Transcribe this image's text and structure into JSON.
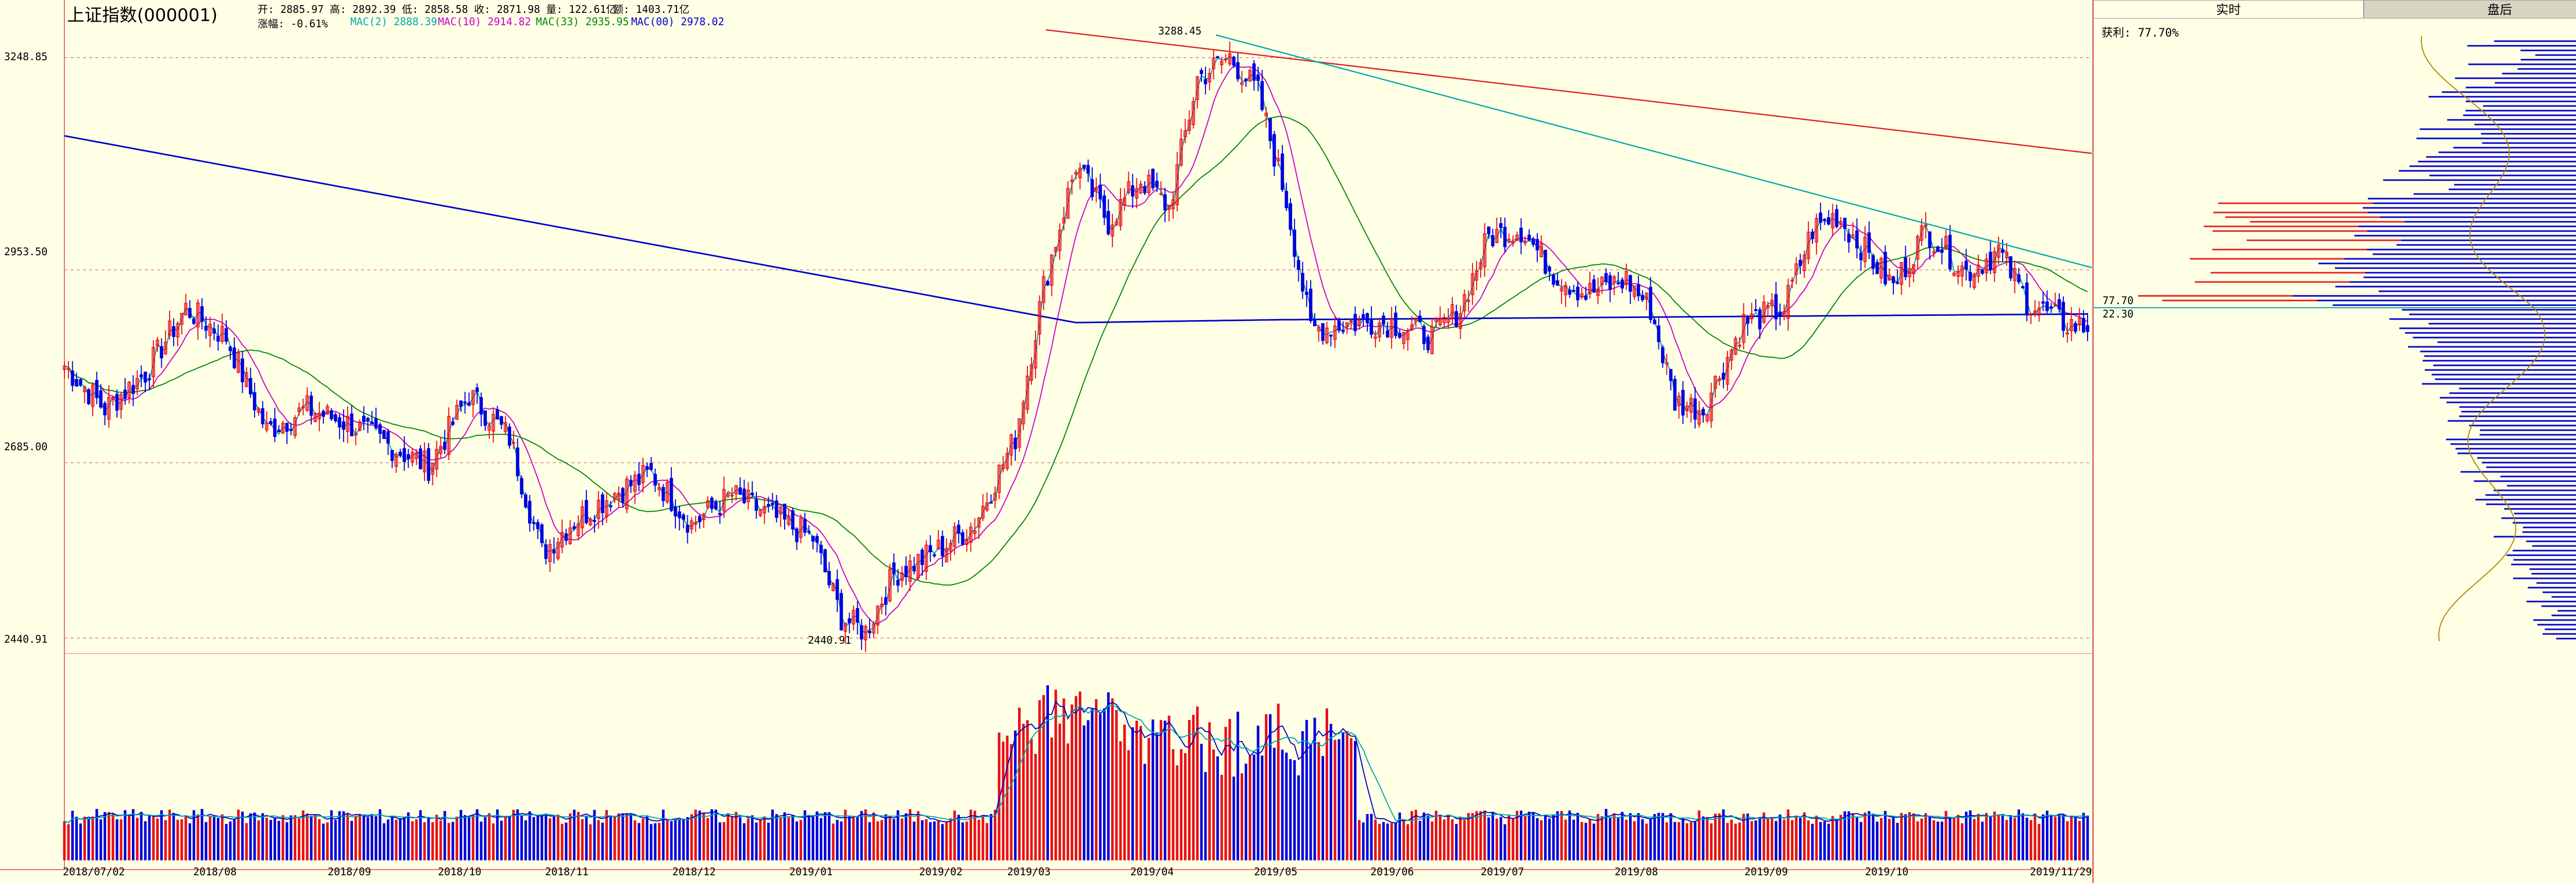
{
  "header": {
    "title": "上证指数(000001)",
    "open": "开: 2885.97",
    "high": "高: 2892.39",
    "low": "低: 2858.58",
    "close": "收: 2871.98",
    "volume": "量: 122.61亿",
    "amount": "额: 1403.71亿",
    "change": "涨幅: -0.61%",
    "ma2": "MAC(2) 2888.39",
    "ma10": "MAC(10) 2914.82",
    "ma33": "MAC(33) 2935.95",
    "ma250": "MAC(00) 2978.02"
  },
  "colors": {
    "background": "#ffffe6",
    "up": "#e8101a",
    "down": "#0000e0",
    "ma2": "#00aaaa",
    "ma10": "#cc00cc",
    "ma33": "#008800",
    "ma250": "#0000cc",
    "trend_red": "#e02020",
    "trend_cyan": "#00aaaa"
  },
  "tabs": {
    "realtime": "实时",
    "closing": "盘后"
  },
  "right_panel": {
    "profit_ratio": "获利: 77.70%",
    "level_upper": "77.70",
    "level_lower": "22.30"
  },
  "chart_data": {
    "type": "candlestick",
    "y_ticks": [
      "3248.85",
      "2953.50",
      "2685.00",
      "2440.91"
    ],
    "ylim": [
      2390,
      3330
    ],
    "x_ticks": [
      "2018/07/02",
      "2018/08",
      "2018/09",
      "2018/10",
      "2018/11",
      "2018/12",
      "2019/01",
      "2019/02",
      "2019/03",
      "2019/04",
      "2019/05",
      "2019/06",
      "2019/07",
      "2019/08",
      "2019/09",
      "2019/10",
      "2019/11/29"
    ],
    "annotations": {
      "high": "3288.45",
      "low": "2440.91"
    },
    "anchors": [
      {
        "i": 0,
        "v": 2820
      },
      {
        "i": 10,
        "v": 2760
      },
      {
        "i": 20,
        "v": 2810
      },
      {
        "i": 30,
        "v": 2900
      },
      {
        "i": 40,
        "v": 2860
      },
      {
        "i": 50,
        "v": 2730
      },
      {
        "i": 60,
        "v": 2760
      },
      {
        "i": 70,
        "v": 2740
      },
      {
        "i": 80,
        "v": 2710
      },
      {
        "i": 90,
        "v": 2680
      },
      {
        "i": 100,
        "v": 2780
      },
      {
        "i": 110,
        "v": 2720
      },
      {
        "i": 118,
        "v": 2560
      },
      {
        "i": 125,
        "v": 2600
      },
      {
        "i": 135,
        "v": 2640
      },
      {
        "i": 145,
        "v": 2670
      },
      {
        "i": 155,
        "v": 2600
      },
      {
        "i": 165,
        "v": 2640
      },
      {
        "i": 175,
        "v": 2610
      },
      {
        "i": 185,
        "v": 2580
      },
      {
        "i": 192,
        "v": 2470
      },
      {
        "i": 198,
        "v": 2450
      },
      {
        "i": 205,
        "v": 2530
      },
      {
        "i": 215,
        "v": 2560
      },
      {
        "i": 225,
        "v": 2600
      },
      {
        "i": 235,
        "v": 2720
      },
      {
        "i": 242,
        "v": 2930
      },
      {
        "i": 250,
        "v": 3100
      },
      {
        "i": 258,
        "v": 3020
      },
      {
        "i": 266,
        "v": 3080
      },
      {
        "i": 273,
        "v": 3040
      },
      {
        "i": 280,
        "v": 3220
      },
      {
        "i": 288,
        "v": 3250
      },
      {
        "i": 295,
        "v": 3200
      },
      {
        "i": 302,
        "v": 3050
      },
      {
        "i": 308,
        "v": 2870
      },
      {
        "i": 318,
        "v": 2880
      },
      {
        "i": 328,
        "v": 2880
      },
      {
        "i": 338,
        "v": 2860
      },
      {
        "i": 345,
        "v": 2900
      },
      {
        "i": 352,
        "v": 3000
      },
      {
        "i": 360,
        "v": 3010
      },
      {
        "i": 368,
        "v": 2950
      },
      {
        "i": 376,
        "v": 2920
      },
      {
        "i": 386,
        "v": 2940
      },
      {
        "i": 392,
        "v": 2900
      },
      {
        "i": 398,
        "v": 2770
      },
      {
        "i": 405,
        "v": 2760
      },
      {
        "i": 415,
        "v": 2880
      },
      {
        "i": 425,
        "v": 2900
      },
      {
        "i": 432,
        "v": 3010
      },
      {
        "i": 438,
        "v": 3030
      },
      {
        "i": 445,
        "v": 2980
      },
      {
        "i": 452,
        "v": 2930
      },
      {
        "i": 460,
        "v": 3010
      },
      {
        "i": 470,
        "v": 2950
      },
      {
        "i": 478,
        "v": 2980
      },
      {
        "i": 485,
        "v": 2910
      },
      {
        "i": 494,
        "v": 2880
      },
      {
        "i": 500,
        "v": 2872
      }
    ]
  }
}
